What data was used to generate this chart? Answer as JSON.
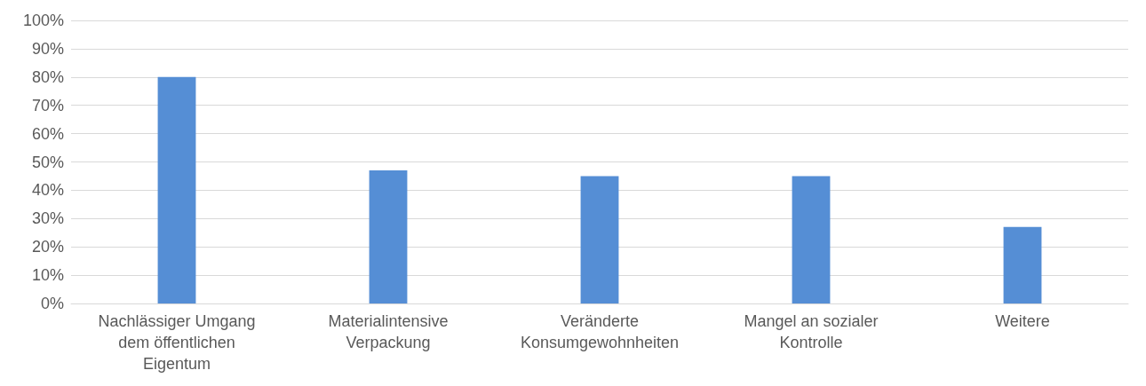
{
  "chart_data": {
    "type": "bar",
    "categories": [
      "Nachlässiger Umgang\ndem öffentlichen\nEigentum",
      "Materialintensive\nVerpackung",
      "Veränderte\nKonsumgewohnheiten",
      "Mangel an sozialer\nKontrolle",
      "Weitere"
    ],
    "values": [
      80,
      47,
      45,
      45,
      27
    ],
    "color": "#558ed5",
    "ylim": [
      0,
      100
    ],
    "yticks": [
      {
        "value": 0,
        "label": "0%"
      },
      {
        "value": 10,
        "label": "10%"
      },
      {
        "value": 20,
        "label": "20%"
      },
      {
        "value": 30,
        "label": "30%"
      },
      {
        "value": 40,
        "label": "40%"
      },
      {
        "value": 50,
        "label": "50%"
      },
      {
        "value": 60,
        "label": "60%"
      },
      {
        "value": 70,
        "label": "70%"
      },
      {
        "value": 80,
        "label": "80%"
      },
      {
        "value": 90,
        "label": "90%"
      },
      {
        "value": 100,
        "label": "100%"
      }
    ],
    "grid": "y"
  }
}
